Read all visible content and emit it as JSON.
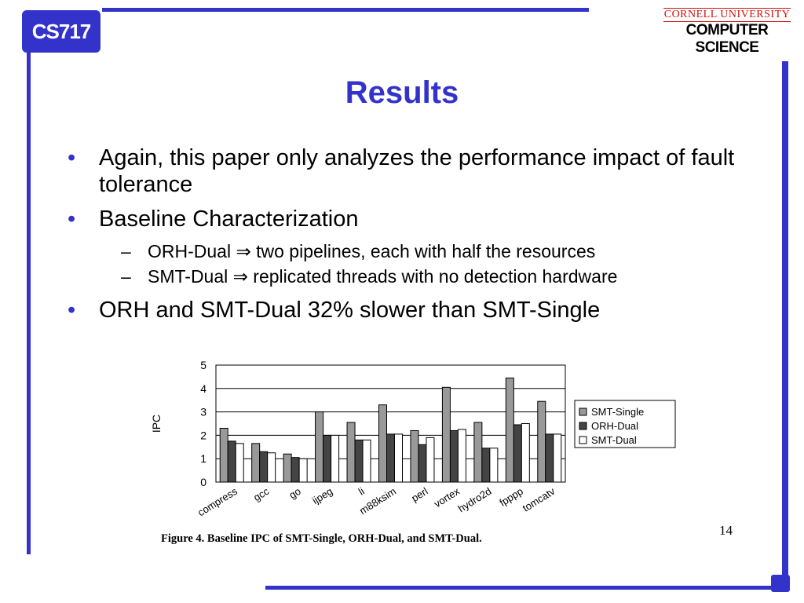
{
  "course": "CS717",
  "logo": {
    "line1": "CORNELL UNIVERSITY",
    "line2": "COMPUTER SCIENCE"
  },
  "title": "Results",
  "bullets": {
    "b1": "Again, this paper only analyzes the performance impact of fault tolerance",
    "b2": "Baseline Characterization",
    "b2_sub1": "ORH-Dual ⇒ two pipelines, each with half the resources",
    "b2_sub2": "SMT-Dual ⇒ replicated threads with no detection hardware",
    "b3": "ORH and SMT-Dual 32% slower than SMT-Single",
    "marker": "•",
    "dash": "–"
  },
  "caption": "Figure 4. Baseline IPC of SMT-Single, ORH-Dual, and SMT-Dual.",
  "page_number": "14",
  "chart_data": {
    "type": "bar",
    "categories": [
      "compress",
      "gcc",
      "go",
      "ijpeg",
      "li",
      "m88ksim",
      "perl",
      "vortex",
      "hydro2d",
      "fpppp",
      "tomcatv"
    ],
    "series": [
      {
        "name": "SMT-Single",
        "color": "#999999",
        "values": [
          2.3,
          1.65,
          1.2,
          3.0,
          2.55,
          3.3,
          2.2,
          4.05,
          2.55,
          4.45,
          3.45
        ]
      },
      {
        "name": "ORH-Dual",
        "color": "#444444",
        "values": [
          1.75,
          1.3,
          1.05,
          2.0,
          1.8,
          2.05,
          1.6,
          2.2,
          1.45,
          2.45,
          2.05
        ]
      },
      {
        "name": "SMT-Dual",
        "color": "#ffffff",
        "values": [
          1.65,
          1.25,
          1.0,
          2.0,
          1.8,
          2.05,
          1.9,
          2.25,
          1.45,
          2.5,
          2.05
        ]
      }
    ],
    "ylabel": "IPC",
    "xlabel": "",
    "ylim": [
      0,
      5
    ],
    "yticks": [
      0,
      1,
      2,
      3,
      4,
      5
    ],
    "grid": true,
    "legend": "right"
  }
}
